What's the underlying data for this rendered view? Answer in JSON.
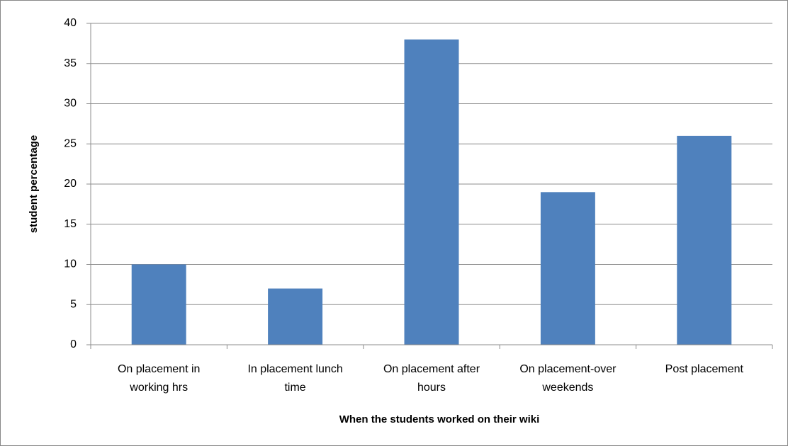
{
  "chart_data": {
    "type": "bar",
    "categories": [
      "On placement in working hrs",
      "In placement lunch time",
      "On placement after hours",
      "On placement-over weekends",
      "Post placement"
    ],
    "values": [
      10,
      7,
      38,
      19,
      26
    ],
    "color": "#4f81bd",
    "ylim": [
      0,
      40
    ],
    "yticks": [
      0,
      5,
      10,
      15,
      20,
      25,
      30,
      35,
      40
    ],
    "grid": true,
    "y_label": "student percentage",
    "x_label": "When the students worked on their wiki"
  }
}
